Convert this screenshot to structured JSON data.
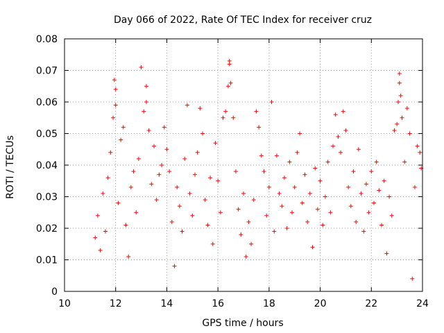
{
  "chart_data": {
    "type": "scatter",
    "title": "Day 066 of 2022, Rate Of TEC Index for receiver cruz",
    "xlabel": "GPS time / hours",
    "ylabel": "ROTI / TECUs",
    "xlim": [
      10,
      24
    ],
    "ylim": [
      0,
      0.08
    ],
    "xticks": [
      10,
      12,
      14,
      16,
      18,
      20,
      22,
      24
    ],
    "yticks": [
      0,
      0.01,
      0.02,
      0.03,
      0.04,
      0.05,
      0.06,
      0.07,
      0.08
    ],
    "xtick_labels": [
      "10",
      "12",
      "14",
      "16",
      "18",
      "20",
      "22",
      "24"
    ],
    "ytick_labels": [
      "0",
      "0.01",
      "0.02",
      "0.03",
      "0.04",
      "0.05",
      "0.06",
      "0.07",
      "0.08"
    ],
    "grid": true,
    "marker": "+",
    "color": "#ff0000",
    "series": [
      {
        "name": "ROTI",
        "points": [
          [
            11.2,
            0.017
          ],
          [
            11.3,
            0.024
          ],
          [
            11.4,
            0.013
          ],
          [
            11.5,
            0.031
          ],
          [
            11.6,
            0.019
          ],
          [
            11.7,
            0.036
          ],
          [
            11.8,
            0.044
          ],
          [
            11.9,
            0.055
          ],
          [
            11.95,
            0.067
          ],
          [
            12.0,
            0.064
          ],
          [
            12.0,
            0.059
          ],
          [
            12.1,
            0.028
          ],
          [
            12.2,
            0.048
          ],
          [
            12.3,
            0.052
          ],
          [
            12.4,
            0.021
          ],
          [
            12.5,
            0.011
          ],
          [
            12.6,
            0.033
          ],
          [
            12.7,
            0.038
          ],
          [
            12.8,
            0.025
          ],
          [
            12.9,
            0.042
          ],
          [
            13.0,
            0.071
          ],
          [
            13.1,
            0.057
          ],
          [
            13.2,
            0.065
          ],
          [
            13.2,
            0.06
          ],
          [
            13.3,
            0.051
          ],
          [
            13.4,
            0.034
          ],
          [
            13.5,
            0.046
          ],
          [
            13.6,
            0.029
          ],
          [
            13.7,
            0.037
          ],
          [
            13.8,
            0.04
          ],
          [
            13.9,
            0.052
          ],
          [
            14.0,
            0.045
          ],
          [
            14.1,
            0.038
          ],
          [
            14.2,
            0.022
          ],
          [
            14.3,
            0.008
          ],
          [
            14.4,
            0.033
          ],
          [
            14.5,
            0.027
          ],
          [
            14.6,
            0.019
          ],
          [
            14.7,
            0.042
          ],
          [
            14.8,
            0.059
          ],
          [
            14.9,
            0.031
          ],
          [
            15.0,
            0.024
          ],
          [
            15.1,
            0.037
          ],
          [
            15.2,
            0.044
          ],
          [
            15.3,
            0.058
          ],
          [
            15.4,
            0.05
          ],
          [
            15.5,
            0.029
          ],
          [
            15.6,
            0.021
          ],
          [
            15.7,
            0.036
          ],
          [
            15.8,
            0.015
          ],
          [
            15.9,
            0.047
          ],
          [
            16.0,
            0.035
          ],
          [
            16.1,
            0.025
          ],
          [
            16.2,
            0.055
          ],
          [
            16.3,
            0.057
          ],
          [
            16.4,
            0.065
          ],
          [
            16.45,
            0.072
          ],
          [
            16.45,
            0.073
          ],
          [
            16.5,
            0.066
          ],
          [
            16.6,
            0.055
          ],
          [
            16.7,
            0.038
          ],
          [
            16.8,
            0.026
          ],
          [
            16.9,
            0.018
          ],
          [
            17.0,
            0.031
          ],
          [
            17.1,
            0.011
          ],
          [
            17.2,
            0.022
          ],
          [
            17.3,
            0.015
          ],
          [
            17.4,
            0.029
          ],
          [
            17.5,
            0.057
          ],
          [
            17.6,
            0.052
          ],
          [
            17.7,
            0.043
          ],
          [
            17.8,
            0.038
          ],
          [
            17.9,
            0.024
          ],
          [
            18.0,
            0.033
          ],
          [
            18.1,
            0.06
          ],
          [
            18.2,
            0.019
          ],
          [
            18.3,
            0.043
          ],
          [
            18.4,
            0.031
          ],
          [
            18.5,
            0.027
          ],
          [
            18.6,
            0.036
          ],
          [
            18.7,
            0.02
          ],
          [
            18.8,
            0.041
          ],
          [
            18.9,
            0.025
          ],
          [
            19.0,
            0.033
          ],
          [
            19.1,
            0.044
          ],
          [
            19.2,
            0.05
          ],
          [
            19.3,
            0.028
          ],
          [
            19.4,
            0.037
          ],
          [
            19.5,
            0.022
          ],
          [
            19.6,
            0.031
          ],
          [
            19.7,
            0.014
          ],
          [
            19.8,
            0.039
          ],
          [
            19.9,
            0.026
          ],
          [
            20.0,
            0.035
          ],
          [
            20.1,
            0.021
          ],
          [
            20.2,
            0.03
          ],
          [
            20.3,
            0.041
          ],
          [
            20.4,
            0.025
          ],
          [
            20.5,
            0.046
          ],
          [
            20.6,
            0.056
          ],
          [
            20.7,
            0.049
          ],
          [
            20.8,
            0.044
          ],
          [
            20.9,
            0.057
          ],
          [
            21.0,
            0.051
          ],
          [
            21.1,
            0.033
          ],
          [
            21.2,
            0.027
          ],
          [
            21.3,
            0.038
          ],
          [
            21.4,
            0.022
          ],
          [
            21.5,
            0.045
          ],
          [
            21.6,
            0.031
          ],
          [
            21.7,
            0.019
          ],
          [
            21.8,
            0.034
          ],
          [
            21.9,
            0.025
          ],
          [
            22.0,
            0.038
          ],
          [
            22.1,
            0.028
          ],
          [
            22.2,
            0.041
          ],
          [
            22.3,
            0.032
          ],
          [
            22.4,
            0.021
          ],
          [
            22.5,
            0.035
          ],
          [
            22.6,
            0.012
          ],
          [
            22.7,
            0.03
          ],
          [
            22.8,
            0.024
          ],
          [
            22.9,
            0.051
          ],
          [
            23.0,
            0.053
          ],
          [
            23.05,
            0.06
          ],
          [
            23.1,
            0.066
          ],
          [
            23.1,
            0.069
          ],
          [
            23.15,
            0.062
          ],
          [
            23.2,
            0.055
          ],
          [
            23.3,
            0.041
          ],
          [
            23.4,
            0.058
          ],
          [
            23.5,
            0.05
          ],
          [
            23.6,
            0.004
          ],
          [
            23.7,
            0.033
          ],
          [
            23.8,
            0.046
          ],
          [
            23.9,
            0.044
          ],
          [
            23.95,
            0.039
          ]
        ]
      }
    ]
  }
}
